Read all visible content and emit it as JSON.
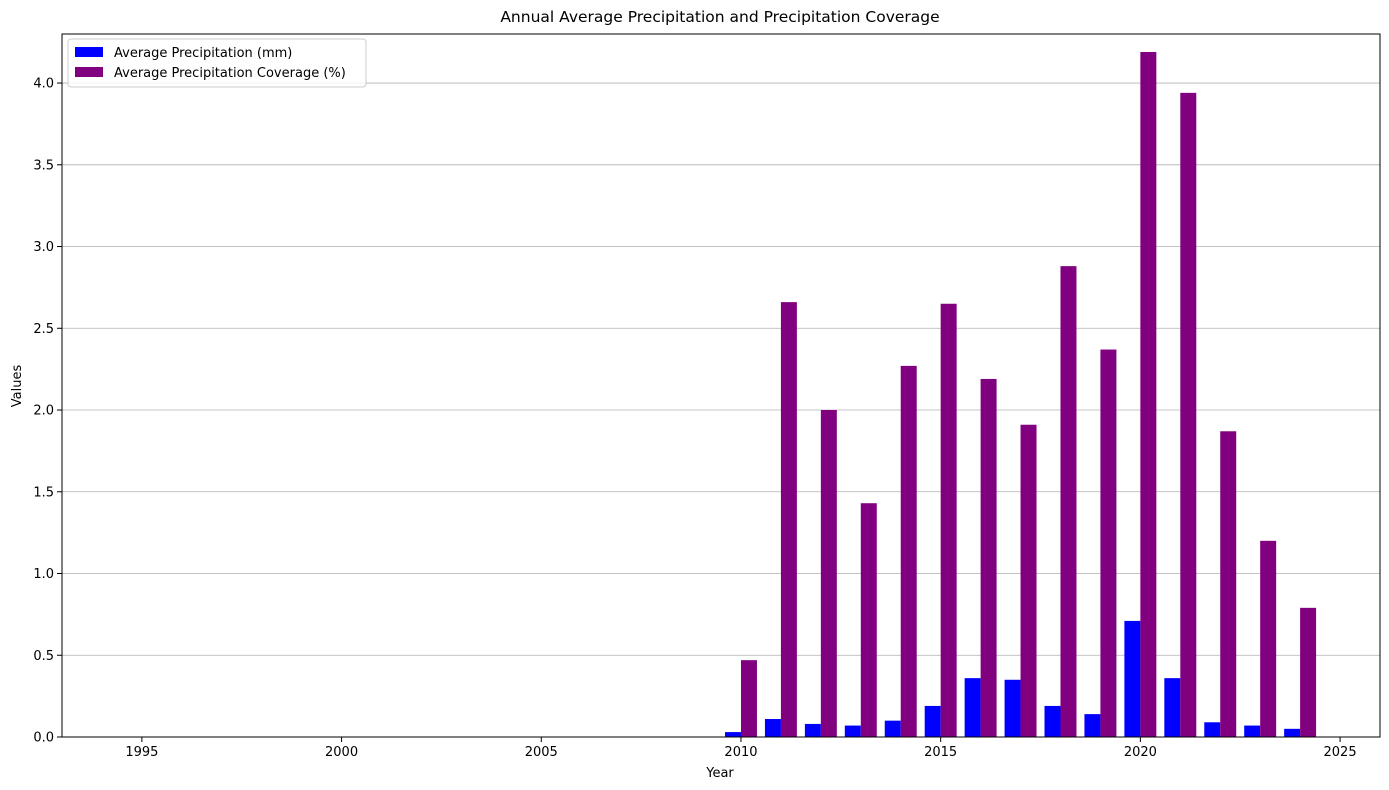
{
  "chart_data": {
    "type": "bar",
    "title": "Annual Average Precipitation and Precipitation Coverage",
    "xlabel": "Year",
    "ylabel": "Values",
    "xlim": [
      1993,
      2026
    ],
    "ylim": [
      0,
      4.3
    ],
    "xticks": [
      1995,
      2000,
      2005,
      2010,
      2015,
      2020,
      2025
    ],
    "yticks": [
      0.0,
      0.5,
      1.0,
      1.5,
      2.0,
      2.5,
      3.0,
      3.5,
      4.0
    ],
    "xtick_labels": [
      "1995",
      "2000",
      "2005",
      "2010",
      "2015",
      "2020",
      "2025"
    ],
    "ytick_labels": [
      "0.0",
      "0.5",
      "1.0",
      "1.5",
      "2.0",
      "2.5",
      "3.0",
      "3.5",
      "4.0"
    ],
    "grid": "horizontal",
    "legend_position": "top-left",
    "x": [
      2010,
      2011,
      2012,
      2013,
      2014,
      2015,
      2016,
      2017,
      2018,
      2019,
      2020,
      2021,
      2022,
      2023,
      2024
    ],
    "series": [
      {
        "name": "Average Precipitation (mm)",
        "color": "#0000ff",
        "values": [
          0.03,
          0.11,
          0.08,
          0.07,
          0.1,
          0.19,
          0.36,
          0.35,
          0.19,
          0.14,
          0.71,
          0.36,
          0.09,
          0.07,
          0.05
        ]
      },
      {
        "name": "Average Precipitation Coverage (%)",
        "color": "#800080",
        "values": [
          0.47,
          2.66,
          2.0,
          1.43,
          2.27,
          2.65,
          2.19,
          1.91,
          2.88,
          2.37,
          4.19,
          3.94,
          1.87,
          1.2,
          0.79
        ]
      }
    ]
  }
}
